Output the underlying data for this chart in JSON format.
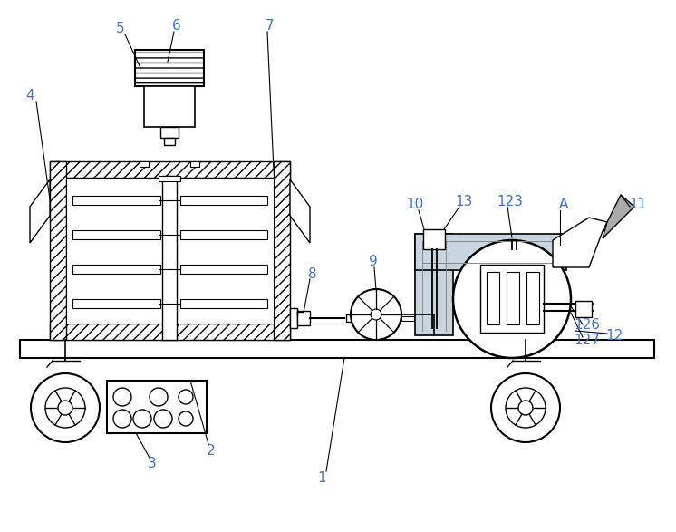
{
  "bg_color": "#ffffff",
  "line_color": "#000000",
  "label_color": "#4472c4",
  "figw": 7.46,
  "figh": 5.87,
  "dpi": 100
}
